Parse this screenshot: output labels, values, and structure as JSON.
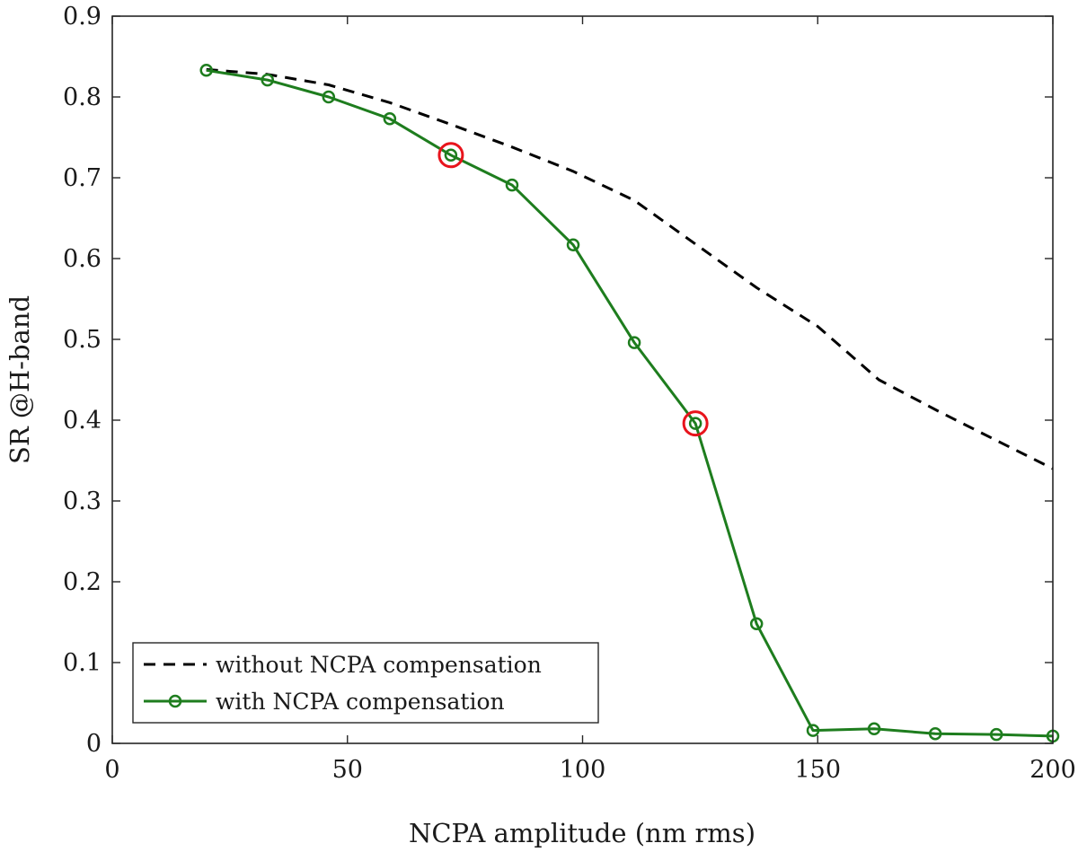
{
  "chart_data": {
    "type": "line",
    "title": "",
    "xlabel": "NCPA amplitude (nm rms)",
    "ylabel": "SR @H-band",
    "xlim": [
      0,
      200
    ],
    "ylim": [
      0,
      0.9
    ],
    "xticks": [
      0,
      50,
      100,
      150,
      200
    ],
    "xtick_labels": [
      "0",
      "50",
      "100",
      "150",
      "200"
    ],
    "yticks": [
      0,
      0.1,
      0.2,
      0.3,
      0.4,
      0.5,
      0.6,
      0.7,
      0.8,
      0.9
    ],
    "ytick_labels": [
      "0",
      "0.1",
      "0.2",
      "0.3",
      "0.4",
      "0.5",
      "0.6",
      "0.7",
      "0.8",
      "0.9"
    ],
    "grid": false,
    "legend_position": "bottom-left",
    "series": [
      {
        "name": "without NCPA compensation",
        "style": "dashed",
        "color": "#000000",
        "marker": "none",
        "x": [
          20,
          33,
          46,
          59,
          72,
          85,
          98,
          111,
          124,
          137,
          150,
          163,
          176,
          189,
          200
        ],
        "y": [
          0.834,
          0.828,
          0.815,
          0.793,
          0.766,
          0.738,
          0.708,
          0.672,
          0.618,
          0.564,
          0.516,
          0.45,
          0.41,
          0.372,
          0.34
        ]
      },
      {
        "name": "with NCPA compensation",
        "style": "solid",
        "color": "#1e7d1e",
        "marker": "circle",
        "x": [
          20,
          33,
          46,
          59,
          72,
          85,
          98,
          111,
          124,
          137,
          149,
          162,
          175,
          188,
          200
        ],
        "y": [
          0.833,
          0.821,
          0.8,
          0.773,
          0.728,
          0.691,
          0.617,
          0.496,
          0.396,
          0.148,
          0.016,
          0.018,
          0.012,
          0.011,
          0.009
        ]
      }
    ],
    "highlighted_points": [
      {
        "x": 72,
        "y": 0.728,
        "color": "#e8141c"
      },
      {
        "x": 124,
        "y": 0.396,
        "color": "#e8141c"
      }
    ]
  }
}
